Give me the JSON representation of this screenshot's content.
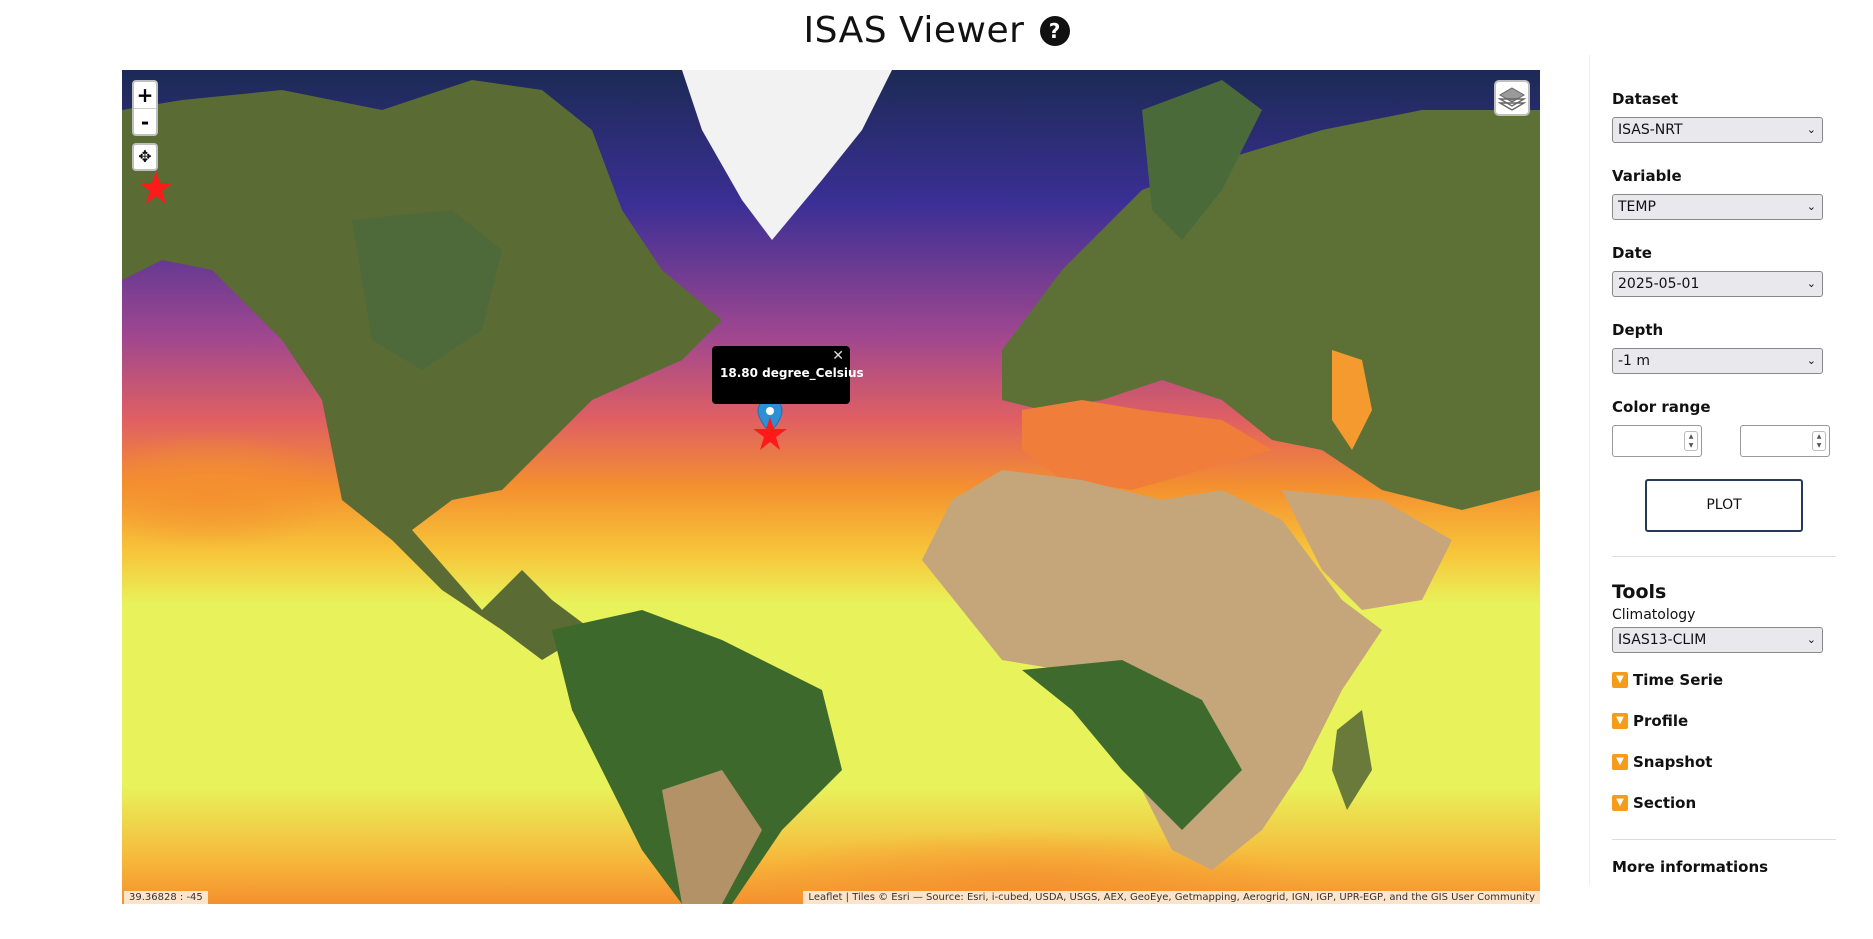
{
  "header": {
    "title": "ISAS Viewer",
    "help_icon": "question-circle-icon",
    "help_symbol": "?"
  },
  "map": {
    "zoom_in_label": "+",
    "zoom_out_label": "-",
    "locate_icon": "crosshair-icon",
    "layers_icon": "layers-icon",
    "popup": {
      "text": "18.80 degree_Celsius",
      "close_symbol": "✕"
    },
    "marker_icon": "map-pin-icon",
    "star_marker_icon": "star-icon",
    "coord_readout": "39.36828 : -45",
    "attribution": "Leaflet | Tiles © Esri — Source: Esri, i-cubed, USDA, USGS, AEX, GeoEye, Getmapping, Aerogrid, IGN, IGP, UPR-EGP, and the GIS User Community",
    "colors": {
      "cold": "#3b2f95",
      "mid": "#d8566a",
      "warm": "#f4902f",
      "hot": "#e8f25a",
      "marker": "#ff1a1a",
      "pin": "#2d8fd6"
    }
  },
  "panel": {
    "dataset_label": "Dataset",
    "dataset_value": "ISAS-NRT",
    "variable_label": "Variable",
    "variable_value": "TEMP",
    "date_label": "Date",
    "date_value": "2025-05-01",
    "depth_label": "Depth",
    "depth_value": "-1 m",
    "color_range_label": "Color range",
    "plot_label": "PLOT",
    "tools_title": "Tools",
    "climatology_label": "Climatology",
    "climatology_value": "ISAS13-CLIM",
    "tools": [
      "Time Serie",
      "Profile",
      "Snapshot",
      "Section"
    ],
    "tool_arrow_icon": "dropdown-arrow-icon",
    "more_info_label": "More informations",
    "chevron_symbol": "⌄"
  }
}
